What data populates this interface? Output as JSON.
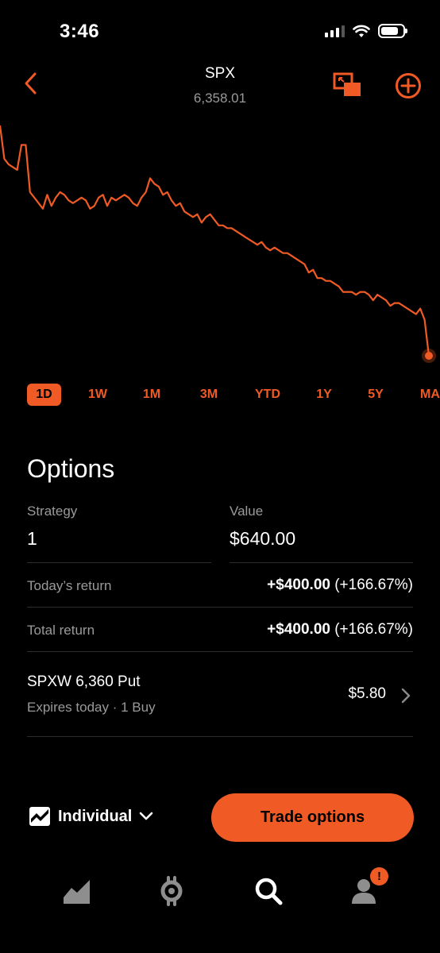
{
  "status_bar": {
    "time": "3:46"
  },
  "header": {
    "symbol": "SPX",
    "price": "6,358.01"
  },
  "chart": {
    "type": "line",
    "color": "#ef5a25",
    "series": [
      88,
      76,
      74,
      73,
      72,
      81,
      81,
      64,
      62,
      60,
      58,
      63,
      59,
      62,
      64,
      63,
      61,
      60,
      61,
      62,
      61,
      58,
      59,
      62,
      63,
      59,
      62,
      61,
      62,
      63,
      62,
      60,
      59,
      62,
      64,
      69,
      67,
      66,
      63,
      64,
      61,
      59,
      60,
      57,
      56,
      55,
      56,
      53,
      55,
      56,
      54,
      52,
      52,
      51,
      51,
      50,
      49,
      48,
      47,
      46,
      45,
      46,
      44,
      43,
      44,
      43,
      42,
      42,
      41,
      40,
      39,
      38,
      35,
      36,
      33,
      33,
      32,
      32,
      31,
      30,
      28,
      28,
      28,
      27,
      28,
      28,
      27,
      25,
      27,
      26,
      25,
      23,
      24,
      24,
      23,
      22,
      21,
      20,
      22,
      18,
      5
    ]
  },
  "ranges": [
    {
      "label": "1D",
      "active": true
    },
    {
      "label": "1W",
      "active": false
    },
    {
      "label": "1M",
      "active": false
    },
    {
      "label": "3M",
      "active": false
    },
    {
      "label": "YTD",
      "active": false
    },
    {
      "label": "1Y",
      "active": false
    },
    {
      "label": "5Y",
      "active": false
    },
    {
      "label": "MAX",
      "active": false
    }
  ],
  "options": {
    "title": "Options",
    "strategy_label": "Strategy",
    "strategy_value": "1",
    "value_label": "Value",
    "value": "$640.00",
    "todays_return_label": "Today’s return",
    "todays_return_amount": "+$400.00",
    "todays_return_pct": "(+166.67%)",
    "total_return_label": "Total return",
    "total_return_amount": "+$400.00",
    "total_return_pct": "(+166.67%)"
  },
  "position": {
    "name": "SPXW 6,360 Put",
    "detail": "Expires today · 1 Buy",
    "price": "$5.80"
  },
  "footer": {
    "account_label": "Individual",
    "trade_label": "Trade options",
    "badge": "!"
  },
  "colors": {
    "accent": "#ef5a25",
    "background": "#000000",
    "muted": "#9a9a9a"
  }
}
